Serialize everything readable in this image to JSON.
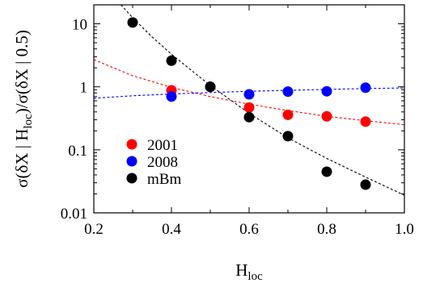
{
  "chart_data": {
    "type": "scatter",
    "title": "",
    "xlabel": {
      "main": "H",
      "sub": "loc"
    },
    "ylabel": {
      "prefix": "σ(δX | H",
      "sub": "loc",
      "suffix": ")/σ(δX | 0.5)"
    },
    "xlim": [
      0.2,
      1.0
    ],
    "ylim": [
      0.01,
      20
    ],
    "yscale": "log",
    "grid": false,
    "legend_position": "left-middle",
    "x_ticks": [
      {
        "value": 0.2,
        "label": "0.2"
      },
      {
        "value": 0.4,
        "label": "0.4"
      },
      {
        "value": 0.6,
        "label": "0.6"
      },
      {
        "value": 0.8,
        "label": "0.8"
      },
      {
        "value": 1.0,
        "label": "1.0"
      }
    ],
    "y_ticks": [
      {
        "value": 10,
        "label": "10"
      },
      {
        "value": 1,
        "label": "1"
      },
      {
        "value": 0.1,
        "label": "0.1"
      },
      {
        "value": 0.01,
        "label": "0.01"
      }
    ],
    "series": [
      {
        "name": "2001",
        "color": "#ff0000",
        "x": [
          0.4,
          0.5,
          0.6,
          0.7,
          0.8,
          0.9
        ],
        "y": [
          0.88,
          1.0,
          0.47,
          0.36,
          0.34,
          0.28
        ],
        "fit": [
          [
            0.2,
            2.7
          ],
          [
            0.3,
            1.5
          ],
          [
            0.4,
            0.98
          ],
          [
            0.5,
            0.7
          ],
          [
            0.6,
            0.53
          ],
          [
            0.7,
            0.42
          ],
          [
            0.8,
            0.34
          ],
          [
            0.9,
            0.29
          ],
          [
            1.0,
            0.25
          ]
        ]
      },
      {
        "name": "2008",
        "color": "#0000ff",
        "x": [
          0.4,
          0.5,
          0.6,
          0.7,
          0.8,
          0.9
        ],
        "y": [
          0.7,
          1.0,
          0.76,
          0.84,
          0.85,
          0.97
        ],
        "fit": [
          [
            0.2,
            0.66
          ],
          [
            0.3,
            0.72
          ],
          [
            0.4,
            0.77
          ],
          [
            0.5,
            0.81
          ],
          [
            0.6,
            0.85
          ],
          [
            0.7,
            0.88
          ],
          [
            0.8,
            0.91
          ],
          [
            0.9,
            0.94
          ],
          [
            1.0,
            0.96
          ]
        ]
      },
      {
        "name": "mBm",
        "color": "#000000",
        "x": [
          0.3,
          0.4,
          0.5,
          0.6,
          0.7,
          0.8,
          0.9
        ],
        "y": [
          10.5,
          2.6,
          1.0,
          0.33,
          0.165,
          0.045,
          0.028
        ],
        "fit": [
          [
            0.27,
            20
          ],
          [
            0.3,
            12.5
          ],
          [
            0.35,
            6.2
          ],
          [
            0.4,
            3.3
          ],
          [
            0.45,
            1.85
          ],
          [
            0.5,
            1.05
          ],
          [
            0.6,
            0.38
          ],
          [
            0.7,
            0.155
          ],
          [
            0.8,
            0.073
          ],
          [
            0.9,
            0.037
          ],
          [
            1.0,
            0.019
          ]
        ]
      }
    ]
  }
}
